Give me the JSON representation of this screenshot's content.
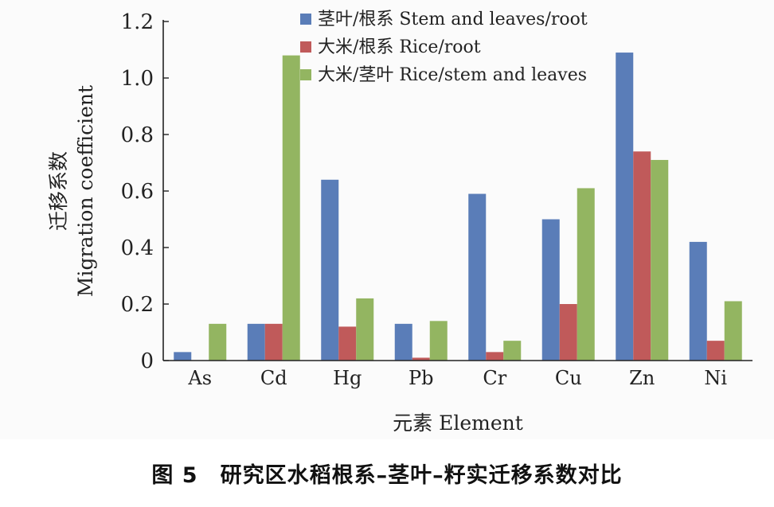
{
  "chart_data": {
    "type": "bar",
    "categories": [
      "As",
      "Cd",
      "Hg",
      "Pb",
      "Cr",
      "Cu",
      "Zn",
      "Ni"
    ],
    "series": [
      {
        "name": "茎叶/根系 Stem and leaves/root",
        "color": "#5a7db8",
        "values": [
          0.03,
          0.13,
          0.64,
          0.13,
          0.59,
          0.5,
          1.09,
          0.42
        ]
      },
      {
        "name": "大米/根系 Rice/root",
        "color": "#c05a5a",
        "values": [
          0.0,
          0.13,
          0.12,
          0.01,
          0.03,
          0.2,
          0.74,
          0.07
        ]
      },
      {
        "name": "大米/茎叶 Rice/stem and leaves",
        "color": "#93b561",
        "values": [
          0.13,
          1.08,
          0.22,
          0.14,
          0.07,
          0.61,
          0.71,
          0.21
        ]
      }
    ],
    "ylim": [
      0,
      1.2
    ],
    "yticks": [
      "0",
      "0.2",
      "0.4",
      "0.6",
      "0.8",
      "1.0",
      "1.2"
    ],
    "xlabel": "元素 Element",
    "ylabel_cn": "迁移系数",
    "ylabel_en": "Migration coefficient",
    "legend_position": "top-center",
    "grid": false
  },
  "caption": {
    "figure_number": "图 5",
    "text": "研究区水稻根系–茎叶–籽实迁移系数对比"
  }
}
